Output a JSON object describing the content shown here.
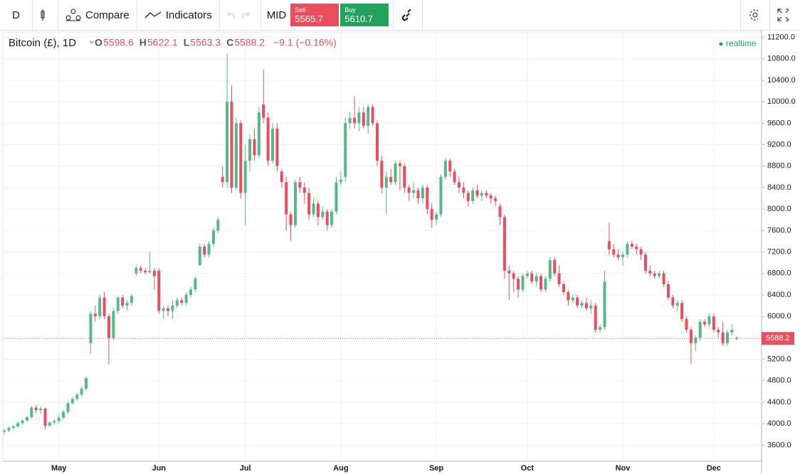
{
  "toolbar": {
    "interval": "D",
    "compare": "Compare",
    "indicators": "Indicators",
    "mid": "MID",
    "sell_label": "Sell",
    "sell_price": "5565.7",
    "buy_label": "Buy",
    "buy_price": "5610.7"
  },
  "legend": {
    "symbol": "Bitcoin (£), 1D",
    "o": "O",
    "h": "H",
    "l": "L",
    "c": "C",
    "change": "−9.1 (−0.16%)",
    "realtime": "realtime"
  },
  "chart_data": {
    "type": "candlestick",
    "up_color": "#53b987",
    "down_color": "#eb4d5c",
    "grid": true,
    "ylim": [
      3300,
      11300
    ],
    "yticks": [
      {
        "value": 3600,
        "label": "3600.0"
      },
      {
        "value": 4000,
        "label": "4000.0"
      },
      {
        "value": 4400,
        "label": "4400.0"
      },
      {
        "value": 4800,
        "label": "4800.0"
      },
      {
        "value": 5200,
        "label": "5200.0"
      },
      {
        "value": 6000,
        "label": "6000.0"
      },
      {
        "value": 6400,
        "label": "6400.0"
      },
      {
        "value": 6800,
        "label": "6800.0"
      },
      {
        "value": 7200,
        "label": "7200.0"
      },
      {
        "value": 7600,
        "label": "7600.0"
      },
      {
        "value": 8000,
        "label": "8000.0"
      },
      {
        "value": 8400,
        "label": "8400.0"
      },
      {
        "value": 8800,
        "label": "8800.0"
      },
      {
        "value": 9200,
        "label": "9200.0"
      },
      {
        "value": 9600,
        "label": "9600.0"
      },
      {
        "value": 10000,
        "label": "10000.0"
      },
      {
        "value": 10400,
        "label": "10400.0"
      },
      {
        "value": 10800,
        "label": "10800.0"
      },
      {
        "value": 11200,
        "label": "11200.0"
      }
    ],
    "categories": [
      null,
      null,
      null,
      null,
      null,
      null,
      null,
      null,
      null,
      null,
      null,
      null,
      "May",
      null,
      null,
      null,
      null,
      null,
      null,
      null,
      null,
      null,
      null,
      null,
      null,
      null,
      null,
      null,
      null,
      null,
      null,
      null,
      null,
      null,
      "Jun",
      null,
      null,
      null,
      null,
      null,
      null,
      null,
      null,
      null,
      null,
      null,
      null,
      null,
      null,
      null,
      null,
      null,
      null,
      "Jul",
      null,
      null,
      null,
      null,
      null,
      null,
      null,
      null,
      null,
      null,
      null,
      null,
      null,
      null,
      null,
      null,
      null,
      null,
      null,
      null,
      "Aug",
      null,
      null,
      null,
      null,
      null,
      null,
      null,
      null,
      null,
      null,
      null,
      null,
      null,
      null,
      null,
      null,
      null,
      null,
      null,
      null,
      "Sep",
      null,
      null,
      null,
      null,
      null,
      null,
      null,
      null,
      null,
      null,
      null,
      null,
      null,
      null,
      null,
      null,
      null,
      null,
      null,
      "Oct",
      null,
      null,
      null,
      null,
      null,
      null,
      null,
      null,
      null,
      null,
      null,
      null,
      null,
      null,
      null,
      null,
      null,
      null,
      null,
      null,
      "Nov",
      null,
      null,
      null,
      null,
      null,
      null,
      null,
      null,
      null,
      null,
      null,
      null,
      null,
      null,
      null,
      null,
      null,
      null,
      null,
      "Dec",
      null,
      null,
      null,
      null,
      null
    ],
    "ohlc": [
      [
        3850,
        3900,
        3800,
        3870
      ],
      [
        3870,
        3950,
        3840,
        3920
      ],
      [
        3920,
        3980,
        3880,
        3950
      ],
      [
        3950,
        4040,
        3920,
        4010
      ],
      [
        4010,
        4080,
        3980,
        4060
      ],
      [
        4060,
        4150,
        4030,
        4120
      ],
      [
        4120,
        4330,
        4100,
        4300
      ],
      [
        4300,
        4350,
        4200,
        4250
      ],
      [
        4250,
        4320,
        4180,
        4280
      ],
      [
        4280,
        4300,
        3900,
        3960
      ],
      [
        3960,
        4050,
        3930,
        4020
      ],
      [
        4020,
        4080,
        3980,
        4050
      ],
      [
        4050,
        4150,
        4000,
        4110
      ],
      [
        4110,
        4250,
        4080,
        4220
      ],
      [
        4220,
        4420,
        4180,
        4380
      ],
      [
        4380,
        4500,
        4350,
        4460
      ],
      [
        4460,
        4580,
        4420,
        4540
      ],
      [
        4540,
        4700,
        4500,
        4650
      ],
      [
        4650,
        4880,
        4620,
        4850
      ],
      [
        5500,
        6100,
        5300,
        6050
      ],
      [
        6050,
        6200,
        5900,
        6000
      ],
      [
        6000,
        6400,
        5950,
        6350
      ],
      [
        6350,
        6450,
        5950,
        6000
      ],
      [
        6000,
        6050,
        5100,
        5600
      ],
      [
        5600,
        6150,
        5550,
        6100
      ],
      [
        6100,
        6380,
        6050,
        6350
      ],
      [
        6350,
        6400,
        6150,
        6200
      ],
      [
        6200,
        6300,
        6100,
        6250
      ],
      [
        6250,
        6420,
        6200,
        6380
      ],
      [
        6800,
        6950,
        6750,
        6900
      ],
      [
        6900,
        6950,
        6800,
        6850
      ],
      [
        6850,
        6900,
        6780,
        6820
      ],
      [
        6820,
        7200,
        6800,
        6850
      ],
      [
        6850,
        6900,
        6500,
        6750
      ],
      [
        6850,
        6900,
        6050,
        6100
      ],
      [
        6100,
        6200,
        5950,
        6150
      ],
      [
        6150,
        6200,
        6000,
        6100
      ],
      [
        6100,
        6300,
        5950,
        6200
      ],
      [
        6200,
        6350,
        6150,
        6300
      ],
      [
        6300,
        6350,
        6200,
        6250
      ],
      [
        6250,
        6450,
        6200,
        6400
      ],
      [
        6400,
        6550,
        6350,
        6500
      ],
      [
        6500,
        6750,
        6450,
        6700
      ],
      [
        6950,
        7350,
        6950,
        7300
      ],
      [
        7300,
        7350,
        7100,
        7150
      ],
      [
        7150,
        7400,
        7100,
        7350
      ],
      [
        7350,
        7650,
        7300,
        7600
      ],
      [
        7600,
        7850,
        7550,
        7800
      ],
      [
        8600,
        8800,
        8400,
        8500
      ],
      [
        8500,
        10900,
        8400,
        10000
      ],
      [
        10000,
        10300,
        8300,
        8400
      ],
      [
        8400,
        9700,
        8350,
        9600
      ],
      [
        9600,
        9650,
        8200,
        8300
      ],
      [
        8300,
        9200,
        7700,
        8900
      ],
      [
        8900,
        9400,
        8700,
        9300
      ],
      [
        9300,
        9500,
        8900,
        9000
      ],
      [
        9000,
        9900,
        8950,
        9800
      ],
      [
        9950,
        10600,
        9600,
        9700
      ],
      [
        9700,
        9800,
        8800,
        8900
      ],
      [
        8900,
        9600,
        8850,
        9500
      ],
      [
        9500,
        9600,
        8700,
        8800
      ],
      [
        8700,
        8750,
        8400,
        8500
      ],
      [
        8500,
        8600,
        7600,
        7900
      ],
      [
        7900,
        7950,
        7400,
        7700
      ],
      [
        7700,
        8550,
        7650,
        8500
      ],
      [
        8500,
        8600,
        8300,
        8400
      ],
      [
        8400,
        8500,
        8100,
        8300
      ],
      [
        8300,
        8400,
        7800,
        7900
      ],
      [
        7900,
        8200,
        7850,
        8100
      ],
      [
        8100,
        8150,
        7700,
        7850
      ],
      [
        7850,
        8050,
        7800,
        7950
      ],
      [
        7950,
        8000,
        7600,
        7700
      ],
      [
        7700,
        8000,
        7650,
        7950
      ],
      [
        7950,
        8600,
        7900,
        8500
      ],
      [
        8500,
        8700,
        8450,
        8550
      ],
      [
        8600,
        9700,
        8500,
        9600
      ],
      [
        9600,
        9800,
        9500,
        9700
      ],
      [
        9700,
        10100,
        9500,
        9600
      ],
      [
        9600,
        9900,
        9450,
        9800
      ],
      [
        9800,
        9900,
        9500,
        9550
      ],
      [
        9550,
        9950,
        9400,
        9900
      ],
      [
        9900,
        9950,
        9550,
        9600
      ],
      [
        9600,
        9650,
        8800,
        8900
      ],
      [
        8900,
        9000,
        8300,
        8400
      ],
      [
        8400,
        8700,
        7900,
        8600
      ],
      [
        8600,
        8750,
        8450,
        8500
      ],
      [
        8500,
        8900,
        8450,
        8850
      ],
      [
        8850,
        8900,
        8350,
        8800
      ],
      [
        8800,
        8850,
        8300,
        8400
      ],
      [
        8400,
        8450,
        8150,
        8300
      ],
      [
        8300,
        8500,
        8200,
        8350
      ],
      [
        8350,
        8400,
        8100,
        8200
      ],
      [
        8200,
        8450,
        8100,
        8400
      ],
      [
        8400,
        8450,
        7900,
        8000
      ],
      [
        8000,
        8100,
        7650,
        7800
      ],
      [
        7800,
        7950,
        7700,
        7900
      ],
      [
        7900,
        8650,
        7850,
        8600
      ],
      [
        8600,
        8950,
        8550,
        8900
      ],
      [
        8900,
        8950,
        8600,
        8700
      ],
      [
        8700,
        8750,
        8450,
        8500
      ],
      [
        8500,
        8600,
        8300,
        8400
      ],
      [
        8400,
        8500,
        8200,
        8300
      ],
      [
        8300,
        8350,
        8050,
        8150
      ],
      [
        8150,
        8400,
        8100,
        8350
      ],
      [
        8350,
        8450,
        8200,
        8250
      ],
      [
        8250,
        8350,
        8150,
        8300
      ],
      [
        8300,
        8350,
        8200,
        8250
      ],
      [
        8250,
        8300,
        8100,
        8200
      ],
      [
        8200,
        8250,
        8050,
        8150
      ],
      [
        8050,
        8100,
        7700,
        7850
      ],
      [
        7850,
        7900,
        6700,
        6850
      ],
      [
        6850,
        6950,
        6300,
        6800
      ],
      [
        6800,
        6850,
        6450,
        6700
      ],
      [
        6700,
        6750,
        6350,
        6500
      ],
      [
        6500,
        6800,
        6450,
        6750
      ],
      [
        6750,
        6850,
        6700,
        6800
      ],
      [
        6800,
        6850,
        6600,
        6650
      ],
      [
        6650,
        6800,
        6550,
        6750
      ],
      [
        6750,
        6800,
        6450,
        6500
      ],
      [
        6500,
        6750,
        6450,
        6700
      ],
      [
        6700,
        7100,
        6650,
        7050
      ],
      [
        7050,
        7100,
        6750,
        6800
      ],
      [
        6800,
        6950,
        6550,
        6600
      ],
      [
        6600,
        6650,
        6400,
        6450
      ],
      [
        6450,
        6500,
        6200,
        6300
      ],
      [
        6300,
        6400,
        6250,
        6350
      ],
      [
        6350,
        6400,
        6150,
        6200
      ],
      [
        6200,
        6300,
        6150,
        6250
      ],
      [
        6250,
        6350,
        6100,
        6150
      ],
      [
        6150,
        6300,
        6050,
        6200
      ],
      [
        6200,
        6250,
        5700,
        5750
      ],
      [
        5750,
        5850,
        5700,
        5800
      ],
      [
        5800,
        6850,
        5750,
        6650
      ],
      [
        7400,
        7750,
        7150,
        7250
      ],
      [
        7250,
        7350,
        7100,
        7150
      ],
      [
        7150,
        7250,
        7050,
        7100
      ],
      [
        7100,
        7200,
        6950,
        7150
      ],
      [
        7150,
        7400,
        7100,
        7350
      ],
      [
        7350,
        7400,
        7250,
        7300
      ],
      [
        7300,
        7350,
        7150,
        7250
      ],
      [
        7250,
        7300,
        7050,
        7150
      ],
      [
        7150,
        7200,
        6800,
        6850
      ],
      [
        6850,
        6950,
        6750,
        6800
      ],
      [
        6800,
        6850,
        6700,
        6750
      ],
      [
        6750,
        6850,
        6700,
        6800
      ],
      [
        6800,
        6850,
        6550,
        6600
      ],
      [
        6600,
        6650,
        6300,
        6350
      ],
      [
        6350,
        6400,
        6150,
        6200
      ],
      [
        6200,
        6300,
        6100,
        6250
      ],
      [
        6250,
        6300,
        5900,
        5950
      ],
      [
        5950,
        6000,
        5700,
        5750
      ],
      [
        5750,
        5800,
        5100,
        5500
      ],
      [
        5500,
        5650,
        5350,
        5600
      ],
      [
        5600,
        5950,
        5550,
        5900
      ],
      [
        5900,
        5950,
        5800,
        5850
      ],
      [
        5850,
        6050,
        5800,
        6000
      ],
      [
        6000,
        6050,
        5700,
        5750
      ],
      [
        5750,
        5800,
        5600,
        5700
      ],
      [
        5700,
        5900,
        5450,
        5500
      ],
      [
        5500,
        5750,
        5450,
        5700
      ],
      [
        5700,
        5850,
        5650,
        5750
      ],
      [
        5598.6,
        5622.1,
        5563.3,
        5588.2
      ]
    ]
  }
}
